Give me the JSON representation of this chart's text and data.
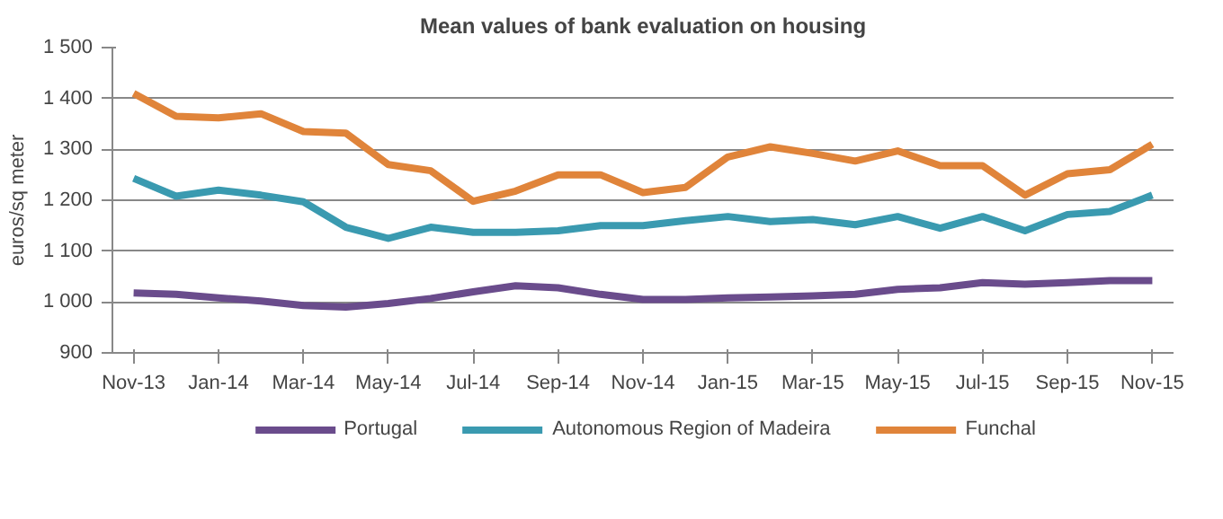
{
  "chart_data": {
    "type": "line",
    "title": "Mean values of bank evaluation on housing",
    "ylabel": "euros/sq meter",
    "categories": [
      "Nov-13",
      null,
      "Jan-14",
      null,
      "Mar-14",
      null,
      "May-14",
      null,
      "Jul-14",
      null,
      "Sep-14",
      null,
      "Nov-14",
      null,
      "Jan-15",
      null,
      "Mar-15",
      null,
      "May-15",
      null,
      "Jul-15",
      null,
      "Sep-15",
      null,
      "Nov-15"
    ],
    "series": [
      {
        "name": "Portugal",
        "color": "#6a4c8c",
        "values": [
          1018,
          1015,
          1008,
          1002,
          993,
          990,
          997,
          1007,
          1020,
          1032,
          1028,
          1015,
          1005,
          1005,
          1008,
          1010,
          1012,
          1015,
          1025,
          1028,
          1038,
          1035,
          1038,
          1042,
          1042
        ]
      },
      {
        "name": "Autonomous Region of Madeira",
        "color": "#3a9ab0",
        "values": [
          1243,
          1208,
          1220,
          1210,
          1197,
          1147,
          1125,
          1147,
          1137,
          1137,
          1140,
          1150,
          1150,
          1160,
          1168,
          1158,
          1162,
          1152,
          1168,
          1145,
          1168,
          1140,
          1172,
          1178,
          1210
        ]
      },
      {
        "name": "Funchal",
        "color": "#e0843a",
        "values": [
          1410,
          1365,
          1362,
          1370,
          1335,
          1332,
          1270,
          1258,
          1198,
          1218,
          1250,
          1250,
          1215,
          1225,
          1285,
          1305,
          1292,
          1277,
          1297,
          1268,
          1268,
          1210,
          1252,
          1260,
          1310
        ]
      }
    ],
    "ylim": [
      900,
      1500
    ],
    "yticks": [
      900,
      {
        "value": 1000,
        "label": "1 000"
      },
      {
        "value": 1100,
        "label": "1 100"
      },
      {
        "value": 1200,
        "label": "1 200"
      },
      {
        "value": 1300,
        "label": "1 300"
      },
      {
        "value": 1400,
        "label": "1 400"
      },
      {
        "value": 1500,
        "label": "1 500"
      }
    ],
    "grid": "y",
    "legend": "bottom",
    "marker": "none",
    "line_style": "solid"
  }
}
